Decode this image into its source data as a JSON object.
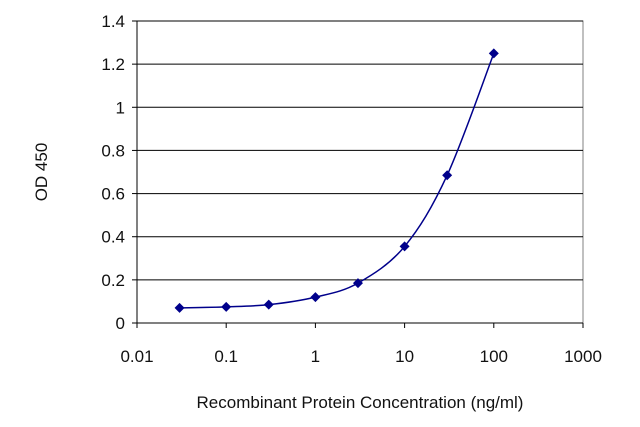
{
  "chart_data": {
    "type": "line",
    "xscale": "log",
    "xlabel": "Recombinant Protein Concentration (ng/ml)",
    "ylabel": "OD 450",
    "xlim": [
      0.01,
      1000
    ],
    "ylim": [
      0,
      1.4
    ],
    "x_ticks": [
      "0.01",
      "0.1",
      "1",
      "10",
      "100",
      "1000"
    ],
    "y_ticks": [
      "0",
      "0.2",
      "0.4",
      "0.6",
      "0.8",
      "1",
      "1.2",
      "1.4"
    ],
    "grid": "horizontal",
    "legend": "none",
    "series": [
      {
        "color": "#00008b",
        "marker": "diamond",
        "x": [
          0.03,
          0.1,
          0.3,
          1,
          3,
          10,
          30,
          100
        ],
        "y": [
          0.07,
          0.075,
          0.085,
          0.12,
          0.185,
          0.355,
          0.685,
          1.25
        ]
      }
    ]
  }
}
